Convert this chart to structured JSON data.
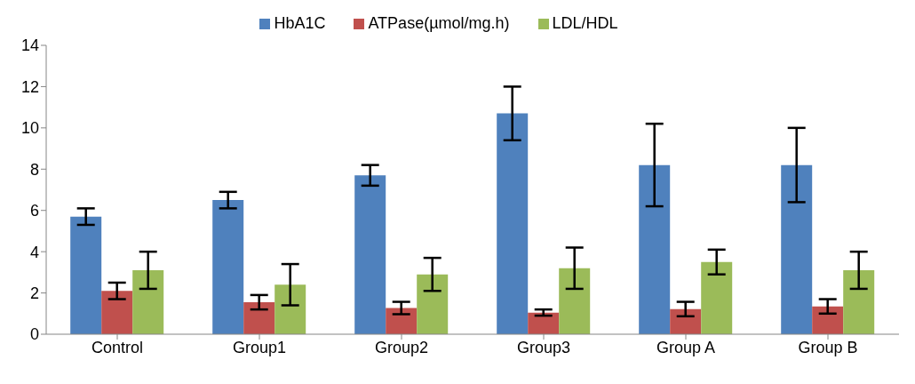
{
  "chart_data": {
    "type": "bar",
    "categories": [
      "Control",
      "Group1",
      "Group2",
      "Group3",
      "Group A",
      "Group B"
    ],
    "series": [
      {
        "name": "HbA1C",
        "color": "#4f81bd",
        "values": [
          5.7,
          6.5,
          7.7,
          10.7,
          8.2,
          8.2
        ],
        "errors": [
          0.4,
          0.4,
          0.5,
          1.3,
          2.0,
          1.8
        ]
      },
      {
        "name": "ATPase(µmol/mg.h)",
        "color": "#c0504d",
        "values": [
          2.1,
          1.55,
          1.27,
          1.05,
          1.22,
          1.35
        ],
        "errors": [
          0.4,
          0.35,
          0.3,
          0.15,
          0.35,
          0.35
        ]
      },
      {
        "name": "LDL/HDL",
        "color": "#9bbb59",
        "values": [
          3.1,
          2.4,
          2.9,
          3.2,
          3.5,
          3.1
        ],
        "errors": [
          0.9,
          1.0,
          0.8,
          1.0,
          0.6,
          0.9
        ]
      }
    ],
    "ylim": [
      0,
      14
    ],
    "yticks": [
      0,
      2,
      4,
      6,
      8,
      10,
      12,
      14
    ],
    "grid": false,
    "legend": "top"
  }
}
